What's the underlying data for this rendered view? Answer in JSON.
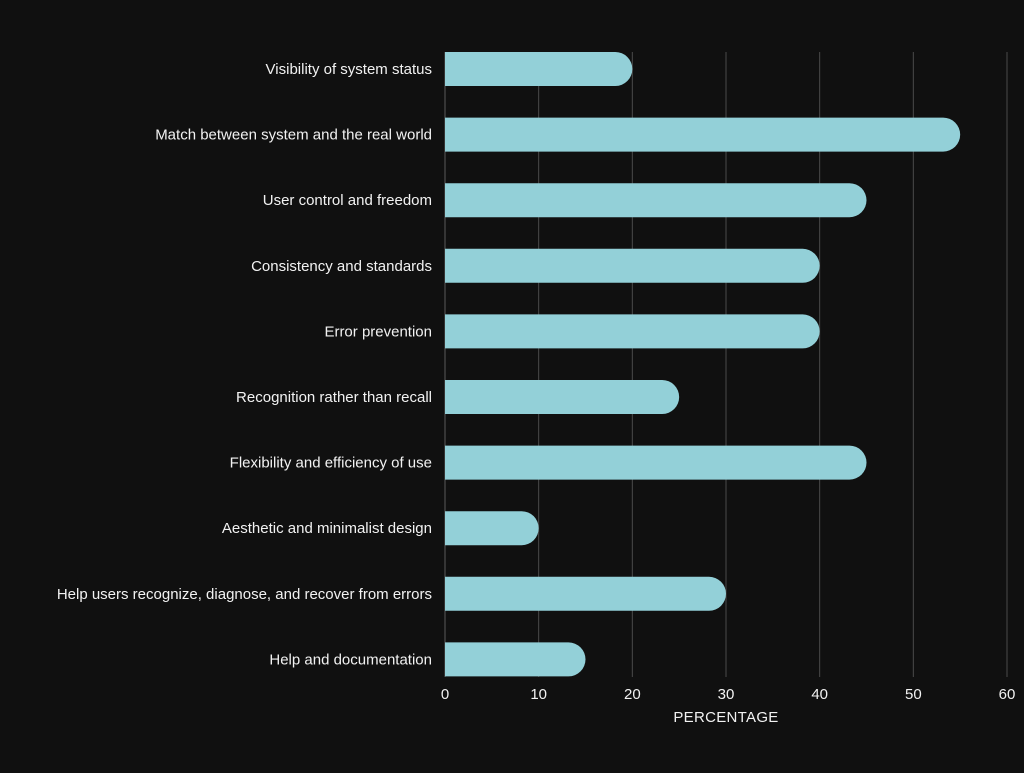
{
  "chart_data": {
    "type": "bar",
    "orientation": "horizontal",
    "categories": [
      "Visibility of system status",
      "Match between system and the real world",
      "User control and freedom",
      "Consistency and standards",
      "Error prevention",
      "Recognition rather than recall",
      "Flexibility and efficiency of use",
      "Aesthetic and minimalist design",
      "Help users recognize, diagnose, and recover from errors",
      "Help and documentation"
    ],
    "values": [
      20,
      55,
      45,
      40,
      40,
      25,
      45,
      10,
      30,
      15
    ],
    "xlabel": "PERCENTAGE",
    "ylabel": "",
    "xlim": [
      0,
      60
    ],
    "xticks": [
      0,
      10,
      20,
      30,
      40,
      50,
      60
    ],
    "grid": "vertical",
    "bar_color": "#93d0d8",
    "background_color": "#101010",
    "text_color": "#f2f2f2"
  }
}
